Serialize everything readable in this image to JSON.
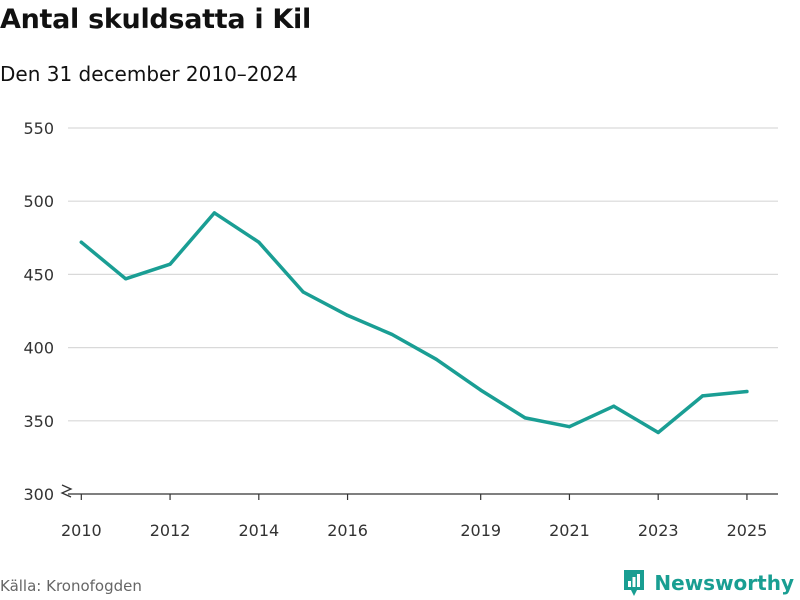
{
  "header": {
    "title": "Antal skuldsatta i Kil",
    "subtitle": "Den 31 december 2010–2024"
  },
  "footer": {
    "source": "Källa: Kronofogden",
    "brand": "Newsworthy",
    "brand_icon": "bar-chart-icon"
  },
  "colors": {
    "line": "#1a9e94",
    "grid": "#d9d9d9",
    "axis": "#333333",
    "tick_text": "#333333",
    "brand": "#199e92"
  },
  "chart_data": {
    "type": "line",
    "title": "Antal skuldsatta i Kil",
    "subtitle": "Den 31 december 2010–2024",
    "xlabel": "",
    "ylabel": "",
    "ylim": [
      300,
      550
    ],
    "y_ticks": [
      300,
      350,
      400,
      450,
      500,
      550
    ],
    "y_axis_break": true,
    "x_range": [
      2009.7,
      2025.7
    ],
    "x_ticks": [
      2010,
      2012,
      2014,
      2016,
      2019,
      2021,
      2023,
      2025
    ],
    "grid": true,
    "series": [
      {
        "name": "Antal skuldsatta",
        "x": [
          2010,
          2011,
          2012,
          2013,
          2014,
          2015,
          2016,
          2017,
          2018,
          2019,
          2020,
          2021,
          2022,
          2023,
          2024,
          2025
        ],
        "values": [
          472,
          447,
          457,
          492,
          472,
          438,
          422,
          409,
          392,
          371,
          352,
          346,
          360,
          342,
          367,
          370
        ]
      }
    ]
  }
}
